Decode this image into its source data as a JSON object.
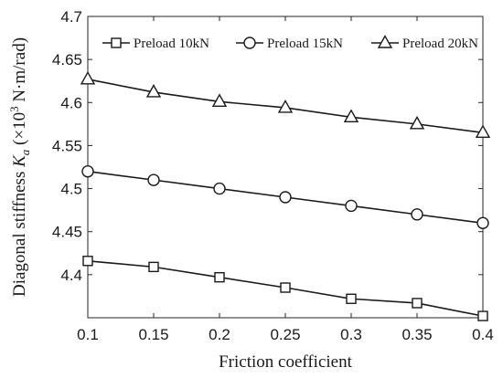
{
  "chart_data": {
    "type": "line",
    "title": "",
    "xlabel": "Friction coefficient",
    "ylabel": {
      "prefix": "Diagonal stiffness ",
      "symbol": "K",
      "subscript": "a",
      "unit_open": " (×10",
      "unit_exp": "3",
      "unit_close": " N·m/rad)"
    },
    "x": [
      0.1,
      0.15,
      0.2,
      0.25,
      0.3,
      0.35,
      0.4
    ],
    "xlim": [
      0.1,
      0.4
    ],
    "ylim": [
      4.35,
      4.7
    ],
    "xticks": [
      "0.1",
      "0.15",
      "0.2",
      "0.25",
      "0.3",
      "0.35",
      "0.4"
    ],
    "yticks": [
      "4.4",
      "4.45",
      "4.5",
      "4.55",
      "4.6",
      "4.65",
      "4.7"
    ],
    "grid": false,
    "legend_position": "top",
    "series": [
      {
        "name": "Preload 10kN",
        "marker": "square",
        "values": [
          4.416,
          4.409,
          4.397,
          4.385,
          4.372,
          4.367,
          4.352
        ]
      },
      {
        "name": "Preload 15kN",
        "marker": "circle",
        "values": [
          4.52,
          4.51,
          4.5,
          4.49,
          4.48,
          4.47,
          4.46
        ]
      },
      {
        "name": "Preload 20kN",
        "marker": "triangle",
        "values": [
          4.627,
          4.612,
          4.601,
          4.594,
          4.583,
          4.575,
          4.565
        ]
      }
    ],
    "colors": {
      "line": "#1a1a1a",
      "background": "#ffffff"
    }
  }
}
